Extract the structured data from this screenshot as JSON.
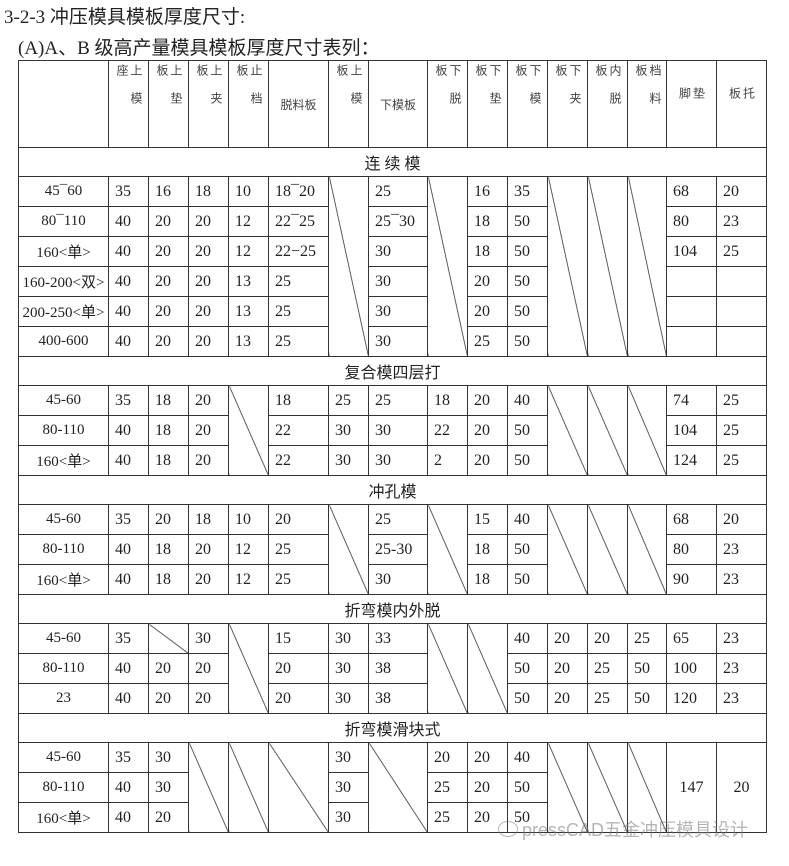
{
  "heading": "3-2-3 冲压模具模板厚度尺寸:",
  "subheading": "(A)A、B 级高产量模具模板厚度尺寸表列：",
  "columns": [
    {
      "label": "",
      "vertical": false
    },
    {
      "label": "上模座",
      "vertical": true
    },
    {
      "label": "上垫板",
      "vertical": true
    },
    {
      "label": "上夹板",
      "vertical": true
    },
    {
      "label": "止档板",
      "vertical": true
    },
    {
      "label": "脱料板",
      "vertical": false
    },
    {
      "label": "上模板",
      "vertical": true
    },
    {
      "label": "下模板",
      "vertical": false
    },
    {
      "label": "下脱板",
      "vertical": true
    },
    {
      "label": "下垫板",
      "vertical": true
    },
    {
      "label": "下模板",
      "vertical": true
    },
    {
      "label": "下夹板",
      "vertical": true
    },
    {
      "label": "内脱板",
      "vertical": true
    },
    {
      "label": "档料板",
      "vertical": true
    },
    {
      "label": "垫脚",
      "vertical": true
    },
    {
      "label": "托板",
      "vertical": true
    }
  ],
  "sections": [
    {
      "title": "连 续 模",
      "rows": [
        [
          "45¯60",
          "35",
          "16",
          "18",
          "10",
          "18¯20",
          {
            "diag": true
          },
          "25",
          {
            "diag": true
          },
          "16",
          "35",
          {
            "diag": true
          },
          {
            "diag": true
          },
          {
            "diag": true
          },
          "68",
          "20"
        ],
        [
          "80¯110",
          "40",
          "20",
          "20",
          "12",
          "22¯25",
          null,
          "25¯30",
          null,
          "18",
          "50",
          null,
          null,
          null,
          "80",
          "23"
        ],
        [
          "160<单>",
          "40",
          "20",
          "20",
          "12",
          "22−25",
          null,
          "30",
          null,
          "18",
          "50",
          null,
          null,
          null,
          "104",
          "25"
        ],
        [
          "160-200<双>",
          "40",
          "20",
          "20",
          "13",
          "25",
          null,
          "30",
          null,
          "20",
          "50",
          null,
          null,
          null,
          "",
          ""
        ],
        [
          "200-250<单>",
          "40",
          "20",
          "20",
          "13",
          "25",
          null,
          "30",
          null,
          "20",
          "50",
          null,
          null,
          null,
          "",
          ""
        ],
        [
          "400-600",
          "40",
          "20",
          "20",
          "13",
          "25",
          null,
          "30",
          null,
          "25",
          "50",
          null,
          null,
          null,
          "",
          ""
        ]
      ]
    },
    {
      "title": "复合模四层打",
      "rows": [
        [
          "45-60",
          "35",
          "18",
          "20",
          {
            "diag": true
          },
          "18",
          "25",
          "25",
          "18",
          "20",
          "40",
          {
            "diag": true
          },
          {
            "diag": true
          },
          {
            "diag": true
          },
          "74",
          "25"
        ],
        [
          "80-110",
          "40",
          "18",
          "20",
          null,
          "22",
          "30",
          "30",
          "22",
          "20",
          "50",
          null,
          null,
          null,
          "104",
          "25"
        ],
        [
          "160<单>",
          "40",
          "18",
          "20",
          null,
          "22",
          "30",
          "30",
          "2",
          "20",
          "50",
          null,
          null,
          null,
          "124",
          "25"
        ]
      ]
    },
    {
      "title": "冲孔模",
      "rows": [
        [
          "45-60",
          "35",
          "20",
          "18",
          "10",
          "20",
          {
            "diag": true
          },
          "25",
          {
            "diag": true
          },
          "15",
          "40",
          {
            "diag": true
          },
          {
            "diag": true
          },
          {
            "diag": true
          },
          "68",
          "20"
        ],
        [
          "80-110",
          "40",
          "18",
          "20",
          "12",
          "25",
          null,
          "25-30",
          null,
          "18",
          "50",
          null,
          null,
          null,
          "80",
          "23"
        ],
        [
          "160<单>",
          "40",
          "18",
          "20",
          "12",
          "25",
          null,
          "30",
          null,
          "18",
          "50",
          null,
          null,
          null,
          "90",
          "23"
        ]
      ]
    },
    {
      "title": "折弯模内外脱",
      "rows": [
        [
          "45-60",
          "35",
          {
            "diag": true,
            "single": true
          },
          "30",
          {
            "diag": true
          },
          "15",
          "30",
          "33",
          {
            "diag": true
          },
          {
            "diag": true
          },
          "40",
          "20",
          "20",
          "25",
          "65",
          "23"
        ],
        [
          "80-110",
          "40",
          "20",
          "20",
          null,
          "20",
          "30",
          "38",
          null,
          null,
          "50",
          "20",
          "25",
          "50",
          "100",
          "23"
        ],
        [
          "23",
          "40",
          "20",
          "20",
          null,
          "20",
          "30",
          "38",
          null,
          null,
          "50",
          "20",
          "25",
          "50",
          "120",
          "23"
        ]
      ]
    },
    {
      "title": "折弯模滑块式",
      "rows": [
        [
          "45-60",
          "35",
          "30",
          {
            "diag": true
          },
          {
            "diag": true
          },
          {
            "diag": true
          },
          "30",
          {
            "diag": true
          },
          "20",
          "20",
          "40",
          {
            "diag": true
          },
          {
            "diag": true
          },
          {
            "diag": true
          },
          {
            "v": "147"
          },
          {
            "v": "20"
          }
        ],
        [
          "80-110",
          "40",
          "30",
          null,
          null,
          null,
          "30",
          null,
          "25",
          "20",
          "50",
          null,
          null,
          null,
          null,
          null
        ],
        [
          "160<单>",
          "40",
          "20",
          null,
          null,
          null,
          "30",
          null,
          "25",
          "20",
          "50",
          null,
          null,
          null,
          null,
          null
        ]
      ]
    }
  ],
  "watermark": {
    "text": "pressCAD五金冲压模具设计",
    "icon": "wechat-icon"
  }
}
